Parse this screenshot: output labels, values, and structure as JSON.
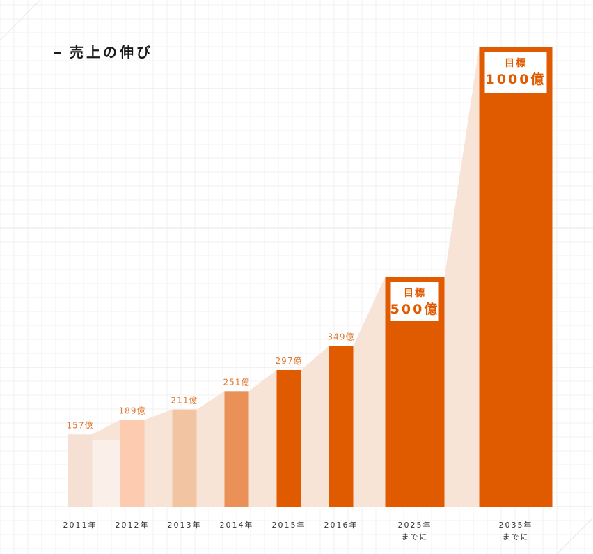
{
  "title": "売上の伸び",
  "chart_data": {
    "type": "bar",
    "title": "売上の伸び",
    "categories": [
      "2011年",
      "2012年",
      "2013年",
      "2014年",
      "2015年",
      "2016年",
      "2025年までに",
      "2035年までに"
    ],
    "category_lines": [
      [
        "2011年"
      ],
      [
        "2012年"
      ],
      [
        "2013年"
      ],
      [
        "2014年"
      ],
      [
        "2015年"
      ],
      [
        "2016年"
      ],
      [
        "2025年",
        "までに"
      ],
      [
        "2035年",
        "までに"
      ]
    ],
    "values": [
      157,
      189,
      211,
      251,
      297,
      349,
      500,
      1000
    ],
    "value_labels": [
      "157億",
      "189億",
      "211億",
      "251億",
      "297億",
      "349億",
      "500億",
      "1000億"
    ],
    "target_label": "目標",
    "is_target": [
      false,
      false,
      false,
      false,
      false,
      false,
      true,
      true
    ],
    "bar_colors": [
      "#f6dfd3",
      "#fccbb0",
      "#f2c4a1",
      "#e99156",
      "#e05a00",
      "#e05a00",
      "#e05a00",
      "#e05a00"
    ],
    "area_color": "#f8e3d7",
    "ylim": [
      0,
      1000
    ],
    "grid": true,
    "legend": "none"
  }
}
